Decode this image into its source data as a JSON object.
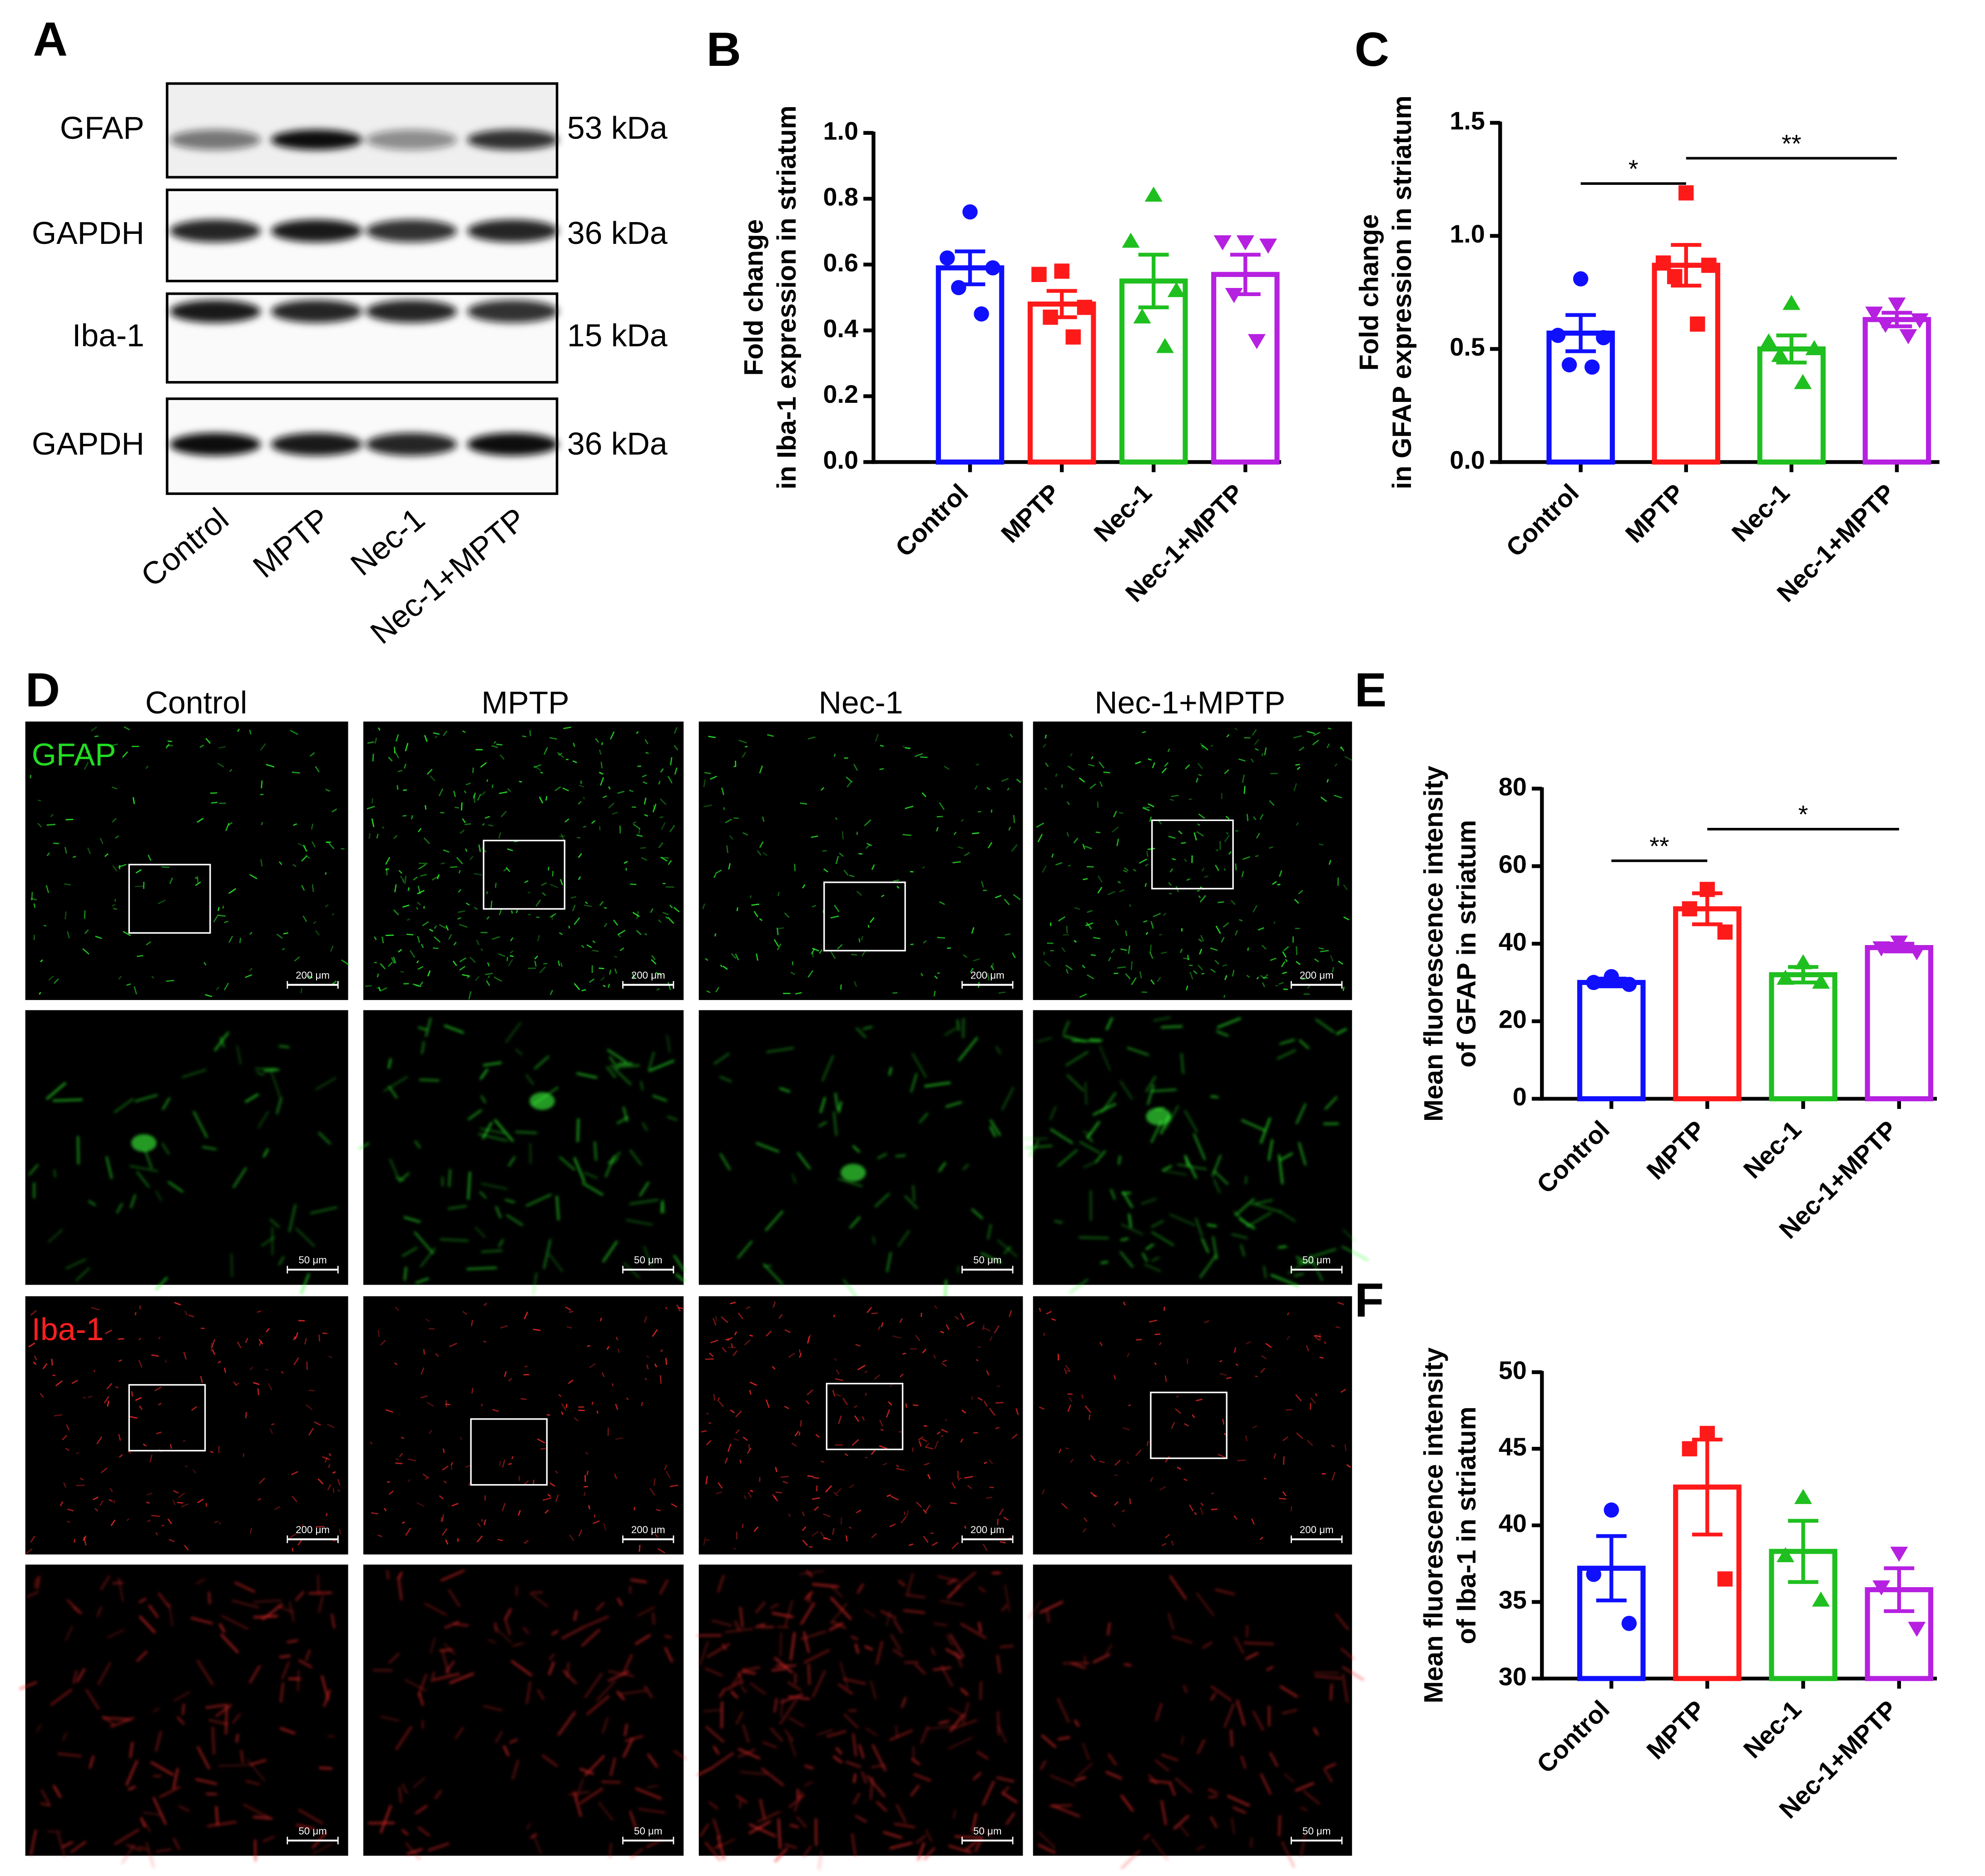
{
  "blot": {
    "label": "A",
    "rows": [
      {
        "protein": "GFAP",
        "size": "53 kDa"
      },
      {
        "protein": "GAPDH",
        "size": "36 kDa"
      },
      {
        "protein": "Iba-1",
        "size": "15 kDa"
      },
      {
        "protein": "GAPDH",
        "size": "36 kDa"
      }
    ],
    "lanes": [
      "Control",
      "MPTP",
      "Nec-1",
      "Nec-1+MPTP"
    ]
  },
  "micrographs": {
    "label": "D",
    "columns": [
      "Control",
      "MPTP",
      "Nec-1",
      "Nec-1+MPTP"
    ],
    "rows": [
      {
        "label": "GFAP",
        "scale_bar": "200 μm"
      },
      {
        "scale_bar": "50 μm"
      },
      {
        "label": "Iba-1",
        "scale_bar": "200 μm"
      },
      {
        "scale_bar": "50 μm"
      }
    ]
  },
  "chart_data": [
    {
      "type": "bar",
      "label": "B",
      "ylabel": [
        "Fold change",
        "in Iba-1 expression in striatum"
      ],
      "categories": [
        "Control",
        "MPTP",
        "Nec-1",
        "Nec-1+MPTP"
      ],
      "colors": [
        "#1010ff",
        "#ff1a1a",
        "#1fbf1f",
        "#b620e0"
      ],
      "markers": [
        "circle",
        "square",
        "triangle-up",
        "triangle-down"
      ],
      "values": [
        0.59,
        0.48,
        0.55,
        0.57
      ],
      "errors": [
        0.05,
        0.04,
        0.08,
        0.06
      ],
      "points": [
        [
          0.76,
          0.62,
          0.59,
          0.53,
          0.45
        ],
        [
          0.58,
          0.57,
          0.47,
          0.44,
          0.38
        ],
        [
          0.81,
          0.67,
          0.52,
          0.44,
          0.35
        ],
        [
          0.67,
          0.67,
          0.66,
          0.51,
          0.37
        ]
      ],
      "ylim": [
        0,
        1.0
      ],
      "yticks": [
        {
          "value": 0,
          "label": "0.0"
        },
        0.2,
        0.4,
        0.6,
        0.8,
        {
          "value": 1,
          "label": "1.0"
        }
      ]
    },
    {
      "type": "bar",
      "label": "C",
      "ylabel": [
        "Fold change",
        "in GFAP expression in striatum"
      ],
      "categories": [
        "Control",
        "MPTP",
        "Nec-1",
        "Nec-1+MPTP"
      ],
      "colors": [
        "#1010ff",
        "#ff1a1a",
        "#1fbf1f",
        "#b620e0"
      ],
      "markers": [
        "circle",
        "square",
        "triangle-up",
        "triangle-down"
      ],
      "values": [
        0.57,
        0.87,
        0.5,
        0.63
      ],
      "errors": [
        0.08,
        0.09,
        0.06,
        0.03
      ],
      "points": [
        [
          0.81,
          0.56,
          0.55,
          0.43,
          0.42
        ],
        [
          1.19,
          0.88,
          0.87,
          0.82,
          0.61
        ],
        [
          0.7,
          0.53,
          0.5,
          0.47,
          0.35
        ],
        [
          0.7,
          0.66,
          0.63,
          0.61,
          0.56
        ]
      ],
      "ylim": [
        0,
        1.5
      ],
      "yticks": [
        {
          "value": 0,
          "label": "0.0"
        },
        0.5,
        {
          "value": 1,
          "label": "1.0"
        },
        1.5
      ],
      "annotations": [
        "*",
        "**"
      ]
    },
    {
      "type": "bar",
      "label": "E",
      "ylabel": [
        "Mean fluorescence intensity",
        "of GFAP in striatum"
      ],
      "categories": [
        "Control",
        "MPTP",
        "Nec-1",
        "Nec-1+MPTP"
      ],
      "colors": [
        "#1010ff",
        "#ff1a1a",
        "#1fbf1f",
        "#b620e0"
      ],
      "markers": [
        "circle",
        "square",
        "triangle-up",
        "triangle-down"
      ],
      "values": [
        30,
        49,
        32,
        39
      ],
      "errors": [
        1,
        4,
        2,
        1
      ],
      "points": [
        [
          31.5,
          30,
          29.5
        ],
        [
          54,
          49,
          43
        ],
        [
          35,
          31,
          30
        ],
        [
          40.5,
          39,
          38
        ]
      ],
      "ylim": [
        0,
        80
      ],
      "yticks": [
        0,
        20,
        40,
        60,
        80
      ],
      "annotations": [
        "**",
        "*"
      ]
    },
    {
      "type": "bar",
      "label": "F",
      "ylabel": [
        "Mean fluorescence intensity",
        "of Iba-1 in striatum"
      ],
      "categories": [
        "Control",
        "MPTP",
        "Nec-1",
        "Nec-1+MPTP"
      ],
      "colors": [
        "#1010ff",
        "#ff1a1a",
        "#1fbf1f",
        "#b620e0"
      ],
      "markers": [
        "circle",
        "square",
        "triangle-up",
        "triangle-down"
      ],
      "values": [
        37.2,
        42.5,
        38.3,
        35.8
      ],
      "errors": [
        2.1,
        3.1,
        2,
        1.4
      ],
      "points": [
        [
          41,
          36.8,
          33.6
        ],
        [
          46,
          45,
          36.5
        ],
        [
          41.8,
          38,
          35.1
        ],
        [
          38.2,
          36,
          33.3
        ]
      ],
      "ylim": [
        30,
        50
      ],
      "yticks": [
        30,
        35,
        40,
        45,
        50
      ]
    }
  ]
}
